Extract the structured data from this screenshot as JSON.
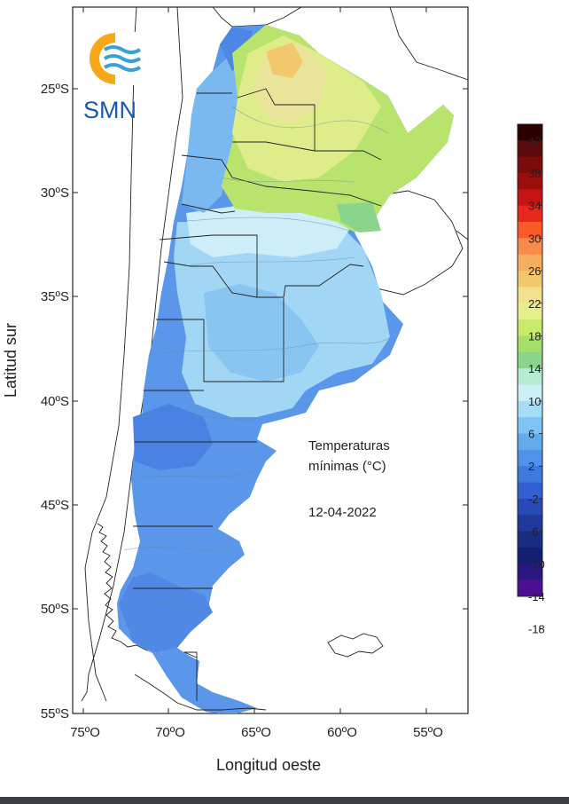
{
  "map": {
    "title_line1": "Temperaturas",
    "title_line2": "mínimas (°C)",
    "date": "12-04-2022",
    "x_axis_title": "Longitud oeste",
    "y_axis_title": "Latitud sur",
    "x_ticks": [
      "75ºO",
      "70ºO",
      "65ºO",
      "60ºO",
      "55ºO"
    ],
    "y_ticks": [
      "25ºS",
      "30ºS",
      "35ºS",
      "40ºS",
      "45ºS",
      "50ºS",
      "55ºS"
    ]
  },
  "logo": {
    "text": "SMN",
    "icon": "smn-logo-icon"
  },
  "legend": {
    "labels": [
      "42",
      "38",
      "34",
      "30",
      "26",
      "22",
      "18",
      "14",
      "10",
      "6",
      "2",
      "-2",
      "-6",
      "-10",
      "-14",
      "-18"
    ],
    "colors": [
      "#2b0000",
      "#5a0a0a",
      "#7a0c0c",
      "#9c0d0d",
      "#c41414",
      "#e8281e",
      "#fa5a28",
      "#f98a4a",
      "#f6ad5d",
      "#f2c86c",
      "#f1e18c",
      "#e6ef8a",
      "#c8ea6c",
      "#a6de6a",
      "#8ad58c",
      "#b6ecd2",
      "#cdf0f7",
      "#a6ddf6",
      "#7ec3f2",
      "#64abee",
      "#4e92e9",
      "#3f78df",
      "#3260d2",
      "#284ab8",
      "#1f389a",
      "#182c82",
      "#122071",
      "#2b1782",
      "#4a0f92"
    ]
  }
}
